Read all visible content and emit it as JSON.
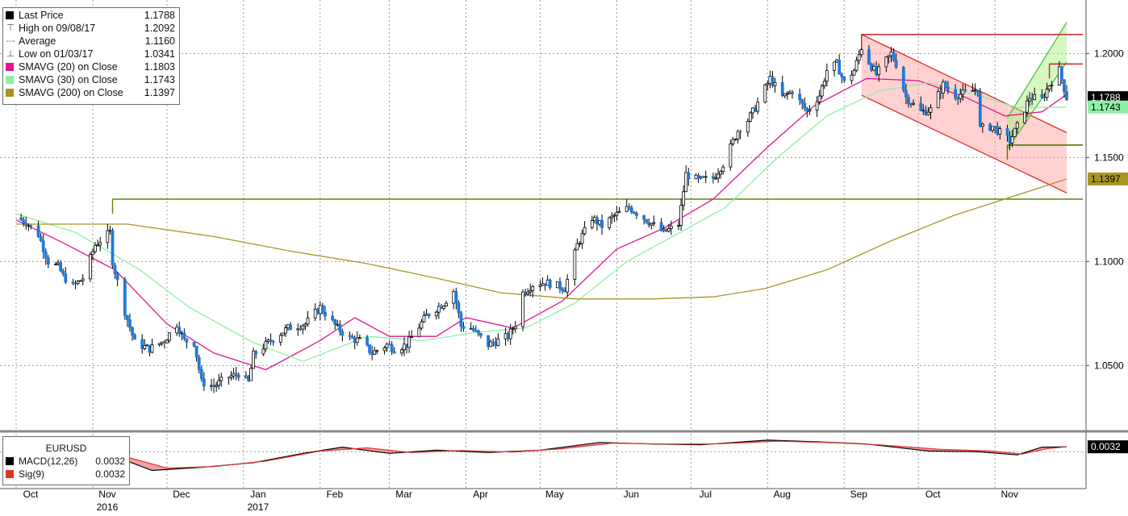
{
  "chart_data": [
    {
      "type": "candlestick",
      "symbol": "EURUSD",
      "y_range": [
        1.0195,
        1.225
      ],
      "y_ticks": [
        "1.2000",
        "1.1500",
        "1.1000",
        "1.0500"
      ],
      "x_range": [
        "2016-10-01",
        "2017-11-30"
      ],
      "x_month_labels": [
        {
          "label": "Oct",
          "date": "2016-10-01"
        },
        {
          "label": "Nov",
          "date": "2016-11-01",
          "year": "2016"
        },
        {
          "label": "Dec",
          "date": "2016-12-01"
        },
        {
          "label": "Jan",
          "date": "2017-01-01",
          "year": "2017"
        },
        {
          "label": "Feb",
          "date": "2017-02-01"
        },
        {
          "label": "Mar",
          "date": "2017-03-01"
        },
        {
          "label": "Apr",
          "date": "2017-04-01"
        },
        {
          "label": "May",
          "date": "2017-05-01"
        },
        {
          "label": "Jun",
          "date": "2017-06-01"
        },
        {
          "label": "Jul",
          "date": "2017-07-01"
        },
        {
          "label": "Aug",
          "date": "2017-08-01"
        },
        {
          "label": "Sep",
          "date": "2017-09-01"
        },
        {
          "label": "Oct",
          "date": "2017-10-01"
        },
        {
          "label": "Nov",
          "date": "2017-11-01"
        }
      ],
      "price_path": [
        [
          "2016-10-01",
          1.121
        ],
        [
          "2016-10-05",
          1.119
        ],
        [
          "2016-10-10",
          1.113
        ],
        [
          "2016-10-14",
          1.1
        ],
        [
          "2016-10-18",
          1.0975
        ],
        [
          "2016-10-20",
          1.093
        ],
        [
          "2016-10-24",
          1.088
        ],
        [
          "2016-10-28",
          1.092
        ],
        [
          "2016-11-02",
          1.108
        ],
        [
          "2016-11-08",
          1.114
        ],
        [
          "2016-11-09",
          1.1
        ],
        [
          "2016-11-14",
          1.076
        ],
        [
          "2016-11-18",
          1.061
        ],
        [
          "2016-11-24",
          1.058
        ],
        [
          "2016-11-30",
          1.062
        ],
        [
          "2016-12-05",
          1.07
        ],
        [
          "2016-12-08",
          1.062
        ],
        [
          "2016-12-12",
          1.061
        ],
        [
          "2016-12-15",
          1.042
        ],
        [
          "2016-12-20",
          1.04
        ],
        [
          "2016-12-25",
          1.044
        ],
        [
          "2016-12-30",
          1.046
        ],
        [
          "2017-01-03",
          1.042
        ],
        [
          "2017-01-05",
          1.055
        ],
        [
          "2017-01-12",
          1.062
        ],
        [
          "2017-01-19",
          1.068
        ],
        [
          "2017-01-26",
          1.07
        ],
        [
          "2017-02-01",
          1.078
        ],
        [
          "2017-02-08",
          1.068
        ],
        [
          "2017-02-13",
          1.063
        ],
        [
          "2017-02-17",
          1.062
        ],
        [
          "2017-02-22",
          1.056
        ],
        [
          "2017-02-28",
          1.06
        ],
        [
          "2017-03-03",
          1.058
        ],
        [
          "2017-03-08",
          1.06
        ],
        [
          "2017-03-16",
          1.074
        ],
        [
          "2017-03-23",
          1.08
        ],
        [
          "2017-03-27",
          1.086
        ],
        [
          "2017-03-30",
          1.069
        ],
        [
          "2017-04-03",
          1.068
        ],
        [
          "2017-04-10",
          1.06
        ],
        [
          "2017-04-18",
          1.064
        ],
        [
          "2017-04-21",
          1.07
        ],
        [
          "2017-04-24",
          1.085
        ],
        [
          "2017-04-28",
          1.089
        ],
        [
          "2017-05-03",
          1.09
        ],
        [
          "2017-05-09",
          1.088
        ],
        [
          "2017-05-11",
          1.087
        ],
        [
          "2017-05-16",
          1.108
        ],
        [
          "2017-05-22",
          1.121
        ],
        [
          "2017-05-26",
          1.117
        ],
        [
          "2017-05-31",
          1.122
        ],
        [
          "2017-06-06",
          1.126
        ],
        [
          "2017-06-13",
          1.12
        ],
        [
          "2017-06-20",
          1.114
        ],
        [
          "2017-06-26",
          1.118
        ],
        [
          "2017-06-29",
          1.142
        ],
        [
          "2017-07-04",
          1.139
        ],
        [
          "2017-07-10",
          1.14
        ],
        [
          "2017-07-14",
          1.147
        ],
        [
          "2017-07-20",
          1.163
        ],
        [
          "2017-07-24",
          1.168
        ],
        [
          "2017-07-27",
          1.174
        ],
        [
          "2017-08-02",
          1.188
        ],
        [
          "2017-08-07",
          1.179
        ],
        [
          "2017-08-11",
          1.182
        ],
        [
          "2017-08-17",
          1.172
        ],
        [
          "2017-08-22",
          1.18
        ],
        [
          "2017-08-25",
          1.192
        ],
        [
          "2017-08-29",
          1.195
        ],
        [
          "2017-09-01",
          1.186
        ],
        [
          "2017-09-05",
          1.192
        ],
        [
          "2017-09-08",
          1.203
        ],
        [
          "2017-09-11",
          1.196
        ],
        [
          "2017-09-14",
          1.19
        ],
        [
          "2017-09-20",
          1.2
        ],
        [
          "2017-09-22",
          1.195
        ],
        [
          "2017-09-26",
          1.179
        ],
        [
          "2017-10-02",
          1.172
        ],
        [
          "2017-10-06",
          1.173
        ],
        [
          "2017-10-11",
          1.185
        ],
        [
          "2017-10-16",
          1.18
        ],
        [
          "2017-10-20",
          1.181
        ],
        [
          "2017-10-25",
          1.183
        ],
        [
          "2017-10-26",
          1.164
        ],
        [
          "2017-10-31",
          1.165
        ],
        [
          "2017-11-03",
          1.162
        ],
        [
          "2017-11-07",
          1.158
        ],
        [
          "2017-11-10",
          1.165
        ],
        [
          "2017-11-15",
          1.179
        ],
        [
          "2017-11-20",
          1.178
        ],
        [
          "2017-11-23",
          1.185
        ],
        [
          "2017-11-27",
          1.192
        ],
        [
          "2017-11-30",
          1.1788
        ]
      ],
      "series": [
        {
          "name": "SMAVG (20) on Close",
          "color": "#e0158f",
          "points": [
            [
              "2016-10-01",
              1.12
            ],
            [
              "2016-10-20",
              1.109
            ],
            [
              "2016-11-10",
              1.096
            ],
            [
              "2016-12-01",
              1.07
            ],
            [
              "2016-12-20",
              1.056
            ],
            [
              "2017-01-10",
              1.048
            ],
            [
              "2017-02-01",
              1.062
            ],
            [
              "2017-02-15",
              1.073
            ],
            [
              "2017-03-01",
              1.064
            ],
            [
              "2017-03-20",
              1.064
            ],
            [
              "2017-04-01",
              1.073
            ],
            [
              "2017-04-20",
              1.068
            ],
            [
              "2017-05-10",
              1.081
            ],
            [
              "2017-06-01",
              1.106
            ],
            [
              "2017-06-20",
              1.116
            ],
            [
              "2017-07-10",
              1.13
            ],
            [
              "2017-08-01",
              1.155
            ],
            [
              "2017-08-20",
              1.175
            ],
            [
              "2017-09-10",
              1.188
            ],
            [
              "2017-10-01",
              1.187
            ],
            [
              "2017-10-20",
              1.179
            ],
            [
              "2017-11-05",
              1.17
            ],
            [
              "2017-11-20",
              1.172
            ],
            [
              "2017-11-30",
              1.1803
            ]
          ]
        },
        {
          "name": "SMAVG (30) on Close",
          "color": "#8ef0a6",
          "points": [
            [
              "2016-10-01",
              1.123
            ],
            [
              "2016-10-25",
              1.114
            ],
            [
              "2016-11-20",
              1.096
            ],
            [
              "2016-12-10",
              1.078
            ],
            [
              "2017-01-05",
              1.061
            ],
            [
              "2017-01-25",
              1.052
            ],
            [
              "2017-02-20",
              1.064
            ],
            [
              "2017-03-15",
              1.062
            ],
            [
              "2017-04-05",
              1.066
            ],
            [
              "2017-04-25",
              1.068
            ],
            [
              "2017-05-15",
              1.08
            ],
            [
              "2017-06-05",
              1.1
            ],
            [
              "2017-06-25",
              1.113
            ],
            [
              "2017-07-15",
              1.126
            ],
            [
              "2017-08-05",
              1.15
            ],
            [
              "2017-08-25",
              1.17
            ],
            [
              "2017-09-15",
              1.182
            ],
            [
              "2017-10-05",
              1.186
            ],
            [
              "2017-10-25",
              1.18
            ],
            [
              "2017-11-10",
              1.174
            ],
            [
              "2017-11-30",
              1.1743
            ]
          ]
        },
        {
          "name": "SMAVG (200) on Close",
          "color": "#a89624",
          "points": [
            [
              "2016-10-01",
              1.118
            ],
            [
              "2016-11-15",
              1.118
            ],
            [
              "2016-12-20",
              1.112
            ],
            [
              "2017-01-20",
              1.105
            ],
            [
              "2017-02-20",
              1.099
            ],
            [
              "2017-03-20",
              1.092
            ],
            [
              "2017-04-15",
              1.085
            ],
            [
              "2017-05-15",
              1.082
            ],
            [
              "2017-06-15",
              1.082
            ],
            [
              "2017-07-10",
              1.083
            ],
            [
              "2017-07-31",
              1.087
            ],
            [
              "2017-08-25",
              1.096
            ],
            [
              "2017-09-20",
              1.11
            ],
            [
              "2017-10-15",
              1.122
            ],
            [
              "2017-11-10",
              1.132
            ],
            [
              "2017-11-30",
              1.1397
            ]
          ]
        }
      ],
      "horizontal_lines": [
        {
          "level": 1.13,
          "color": "#5a8a00",
          "from": "2016-11-09",
          "to": "2017-11-30"
        },
        {
          "level": 1.2092,
          "color": "#c1272d",
          "from": "2017-09-08",
          "to": "2017-11-30"
        },
        {
          "level": 1.195,
          "color": "#c1272d",
          "from": "2017-11-23",
          "to": "2017-11-30"
        },
        {
          "level": 1.156,
          "color": "#4f7a00",
          "from": "2017-11-06",
          "to": "2017-11-30"
        }
      ],
      "channels": [
        {
          "color": "#ff9a9a",
          "upper": [
            [
              "2017-09-08",
              1.2092
            ],
            [
              "2017-11-30",
              1.162
            ]
          ],
          "lower": [
            [
              "2017-09-08",
              1.18
            ],
            [
              "2017-11-30",
              1.133
            ]
          ]
        },
        {
          "color": "#a6f07a",
          "upper": [
            [
              "2017-11-06",
              1.169
            ],
            [
              "2017-11-30",
              1.215
            ]
          ],
          "lower": [
            [
              "2017-11-06",
              1.154
            ],
            [
              "2017-11-30",
              1.196
            ]
          ]
        }
      ],
      "price_labels": [
        {
          "text": "1.1788",
          "value": 1.1788,
          "bg": "#000000",
          "fg": "#ffffff"
        },
        {
          "text": "1.1743",
          "value": 1.1743,
          "bg": "#8ef0a6",
          "fg": "#000000"
        },
        {
          "text": "1.1397",
          "value": 1.1397,
          "bg": "#a89624",
          "fg": "#000000"
        }
      ],
      "legend": [
        {
          "label": "Last Price",
          "value": "1.1788",
          "swatch": "#000000"
        },
        {
          "label": "High on 09/08/17",
          "value": "1.2092",
          "icon": "high-marker"
        },
        {
          "label": "Average",
          "value": "1.1160",
          "icon": "average-marker"
        },
        {
          "label": "Low on 01/03/17",
          "value": "1.0341",
          "icon": "low-marker"
        },
        {
          "label": "SMAVG (20) on Close",
          "value": "1.1803",
          "swatch": "#e0158f"
        },
        {
          "label": "SMAVG (30) on Close",
          "value": "1.1743",
          "swatch": "#8ef0a6"
        },
        {
          "label": "SMAVG (200) on Close",
          "value": "1.1397",
          "swatch": "#a89624"
        }
      ]
    },
    {
      "type": "line",
      "title": "EURUSD",
      "y_range": [
        -0.0195,
        0.0095
      ],
      "series": [
        {
          "name": "MACD(12,26)",
          "value": "0.0032",
          "color": "#000000",
          "points": [
            [
              "2016-10-01",
              0.001
            ],
            [
              "2016-10-20",
              -0.001
            ],
            [
              "2016-11-10",
              -0.003
            ],
            [
              "2016-11-25",
              -0.012
            ],
            [
              "2016-12-15",
              -0.01
            ],
            [
              "2017-01-05",
              -0.007
            ],
            [
              "2017-01-25",
              -0.001
            ],
            [
              "2017-02-10",
              0.003
            ],
            [
              "2017-03-01",
              -0.001
            ],
            [
              "2017-03-20",
              0.001
            ],
            [
              "2017-04-10",
              -0.0005
            ],
            [
              "2017-05-01",
              0.001
            ],
            [
              "2017-05-25",
              0.006
            ],
            [
              "2017-06-15",
              0.005
            ],
            [
              "2017-07-05",
              0.0045
            ],
            [
              "2017-08-01",
              0.0075
            ],
            [
              "2017-08-20",
              0.0065
            ],
            [
              "2017-09-10",
              0.005
            ],
            [
              "2017-10-05",
              0.0005
            ],
            [
              "2017-10-25",
              0.0
            ],
            [
              "2017-11-10",
              -0.002
            ],
            [
              "2017-11-20",
              0.003
            ],
            [
              "2017-11-30",
              0.0032
            ]
          ]
        },
        {
          "name": "Sig(9)",
          "value": "0.0032",
          "color": "#e53030",
          "points": [
            [
              "2016-10-01",
              0.0005
            ],
            [
              "2016-10-25",
              -0.0008
            ],
            [
              "2016-11-15",
              -0.0035
            ],
            [
              "2016-12-01",
              -0.0105
            ],
            [
              "2016-12-20",
              -0.0095
            ],
            [
              "2017-01-10",
              -0.006
            ],
            [
              "2017-02-01",
              0.0005
            ],
            [
              "2017-02-20",
              0.0025
            ],
            [
              "2017-03-10",
              -0.0005
            ],
            [
              "2017-03-30",
              0.0008
            ],
            [
              "2017-04-20",
              -0.0002
            ],
            [
              "2017-05-10",
              0.002
            ],
            [
              "2017-05-30",
              0.0055
            ],
            [
              "2017-06-20",
              0.005
            ],
            [
              "2017-07-10",
              0.005
            ],
            [
              "2017-08-05",
              0.0068
            ],
            [
              "2017-08-25",
              0.006
            ],
            [
              "2017-09-15",
              0.0045
            ],
            [
              "2017-10-10",
              0.0015
            ],
            [
              "2017-10-30",
              0.0005
            ],
            [
              "2017-11-12",
              -0.0015
            ],
            [
              "2017-11-22",
              0.002
            ],
            [
              "2017-11-30",
              0.0032
            ]
          ]
        }
      ],
      "price_labels": [
        {
          "text": "0.0032",
          "value": 0.0032,
          "bg": "#000000",
          "fg": "#ffffff"
        }
      ]
    }
  ]
}
